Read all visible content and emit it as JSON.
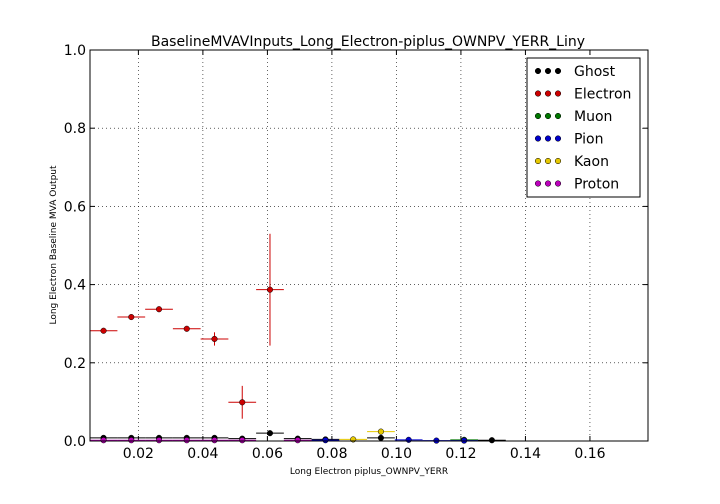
{
  "chart_data": {
    "type": "scatter",
    "title": "BaselineMVAVInputs_Long_Electron-piplus_OWNPV_YERR_Liny",
    "xlabel": "Long Electron piplus_OWNPV_YERR",
    "ylabel": "Long Electron Baseline MVA Output",
    "xlim": [
      0.005,
      0.178
    ],
    "ylim": [
      0.0,
      1.0
    ],
    "xticks": [
      0.02,
      0.04,
      0.06,
      0.08,
      0.1,
      0.12,
      0.14,
      0.16
    ],
    "xtick_labels": [
      "0.02",
      "0.04",
      "0.06",
      "0.08",
      "0.10",
      "0.12",
      "0.14",
      "0.16"
    ],
    "yticks": [
      0.0,
      0.2,
      0.4,
      0.6,
      0.8,
      1.0
    ],
    "ytick_labels": [
      "0.0",
      "0.2",
      "0.4",
      "0.6",
      "0.8",
      "1.0"
    ],
    "grid": true,
    "legend_position": "top-right",
    "bin_halfwidth": 0.0043,
    "series": [
      {
        "name": "Ghost",
        "color": "#000000",
        "points": [
          {
            "x": 0.0092,
            "y": 0.008
          },
          {
            "x": 0.0178,
            "y": 0.008
          },
          {
            "x": 0.0264,
            "y": 0.008
          },
          {
            "x": 0.035,
            "y": 0.008
          },
          {
            "x": 0.0436,
            "y": 0.008
          },
          {
            "x": 0.0522,
            "y": 0.006
          },
          {
            "x": 0.0608,
            "y": 0.02
          },
          {
            "x": 0.0694,
            "y": 0.006
          },
          {
            "x": 0.078,
            "y": 0.004
          },
          {
            "x": 0.0952,
            "y": 0.008
          },
          {
            "x": 0.1296,
            "y": 0.002
          }
        ]
      },
      {
        "name": "Electron",
        "color": "#cc0000",
        "points": [
          {
            "x": 0.0092,
            "y": 0.282,
            "yerr": 0.004
          },
          {
            "x": 0.0178,
            "y": 0.317,
            "yerr": 0.004
          },
          {
            "x": 0.0264,
            "y": 0.337,
            "yerr": 0.004
          },
          {
            "x": 0.035,
            "y": 0.287,
            "yerr": 0.006
          },
          {
            "x": 0.0436,
            "y": 0.261,
            "yerr": 0.017
          },
          {
            "x": 0.0522,
            "y": 0.099,
            "yerr": 0.042
          },
          {
            "x": 0.0608,
            "y": 0.387,
            "yerr": 0.143
          }
        ]
      },
      {
        "name": "Muon",
        "color": "#007700",
        "points": [
          {
            "x": 0.121,
            "y": 0.003
          }
        ]
      },
      {
        "name": "Pion",
        "color": "#0000cc",
        "points": [
          {
            "x": 0.078,
            "y": 0.002
          },
          {
            "x": 0.1038,
            "y": 0.003
          },
          {
            "x": 0.1124,
            "y": 0.001
          },
          {
            "x": 0.121,
            "y": 0.001
          }
        ]
      },
      {
        "name": "Kaon",
        "color": "#e6c800",
        "points": [
          {
            "x": 0.0866,
            "y": 0.004
          },
          {
            "x": 0.0952,
            "y": 0.024
          }
        ]
      },
      {
        "name": "Proton",
        "color": "#bb00bb",
        "points": [
          {
            "x": 0.0092,
            "y": 0.002
          },
          {
            "x": 0.0178,
            "y": 0.002
          },
          {
            "x": 0.0264,
            "y": 0.002
          },
          {
            "x": 0.035,
            "y": 0.002
          },
          {
            "x": 0.0436,
            "y": 0.002
          },
          {
            "x": 0.0522,
            "y": 0.002
          },
          {
            "x": 0.0694,
            "y": 0.002
          }
        ]
      }
    ]
  }
}
